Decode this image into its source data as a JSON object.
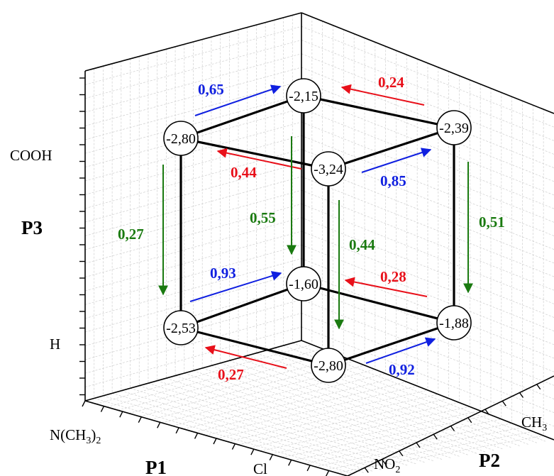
{
  "colors": {
    "red": "#e8101a",
    "blue": "#1020e0",
    "green": "#1a7a10",
    "edge": "#000000"
  },
  "axes": {
    "p1": {
      "title": "P1",
      "ticks": [
        "N(CH",
        "3",
        ")",
        "2",
        "Cl"
      ]
    },
    "p2": {
      "title": "P2",
      "ticks": [
        "NO",
        "2",
        "CH",
        "3"
      ]
    },
    "p3": {
      "title": "P3",
      "ticks": [
        "COOH",
        "H"
      ]
    }
  },
  "nodes": {
    "top_back": "-2,15",
    "top_left": "-2,80",
    "top_right": "-2,39",
    "top_front": "-3,24",
    "bottom_back": "-1,60",
    "bottom_left": "-2,53",
    "bottom_right": "-1,88",
    "bottom_front": "-2,80"
  },
  "edge_labels": {
    "top_left_to_back": "0,65",
    "top_right_to_back": "0,24",
    "top_front_to_left": "0,44",
    "top_front_to_right": "0,85",
    "left_vertical": "0,27",
    "back_vertical": "0,55",
    "front_vertical": "0,44",
    "right_vertical": "0,51",
    "bottom_left_to_back": "0,93",
    "bottom_right_to_back": "0,28",
    "bottom_front_to_left": "0,27",
    "bottom_front_to_right": "0,92"
  }
}
